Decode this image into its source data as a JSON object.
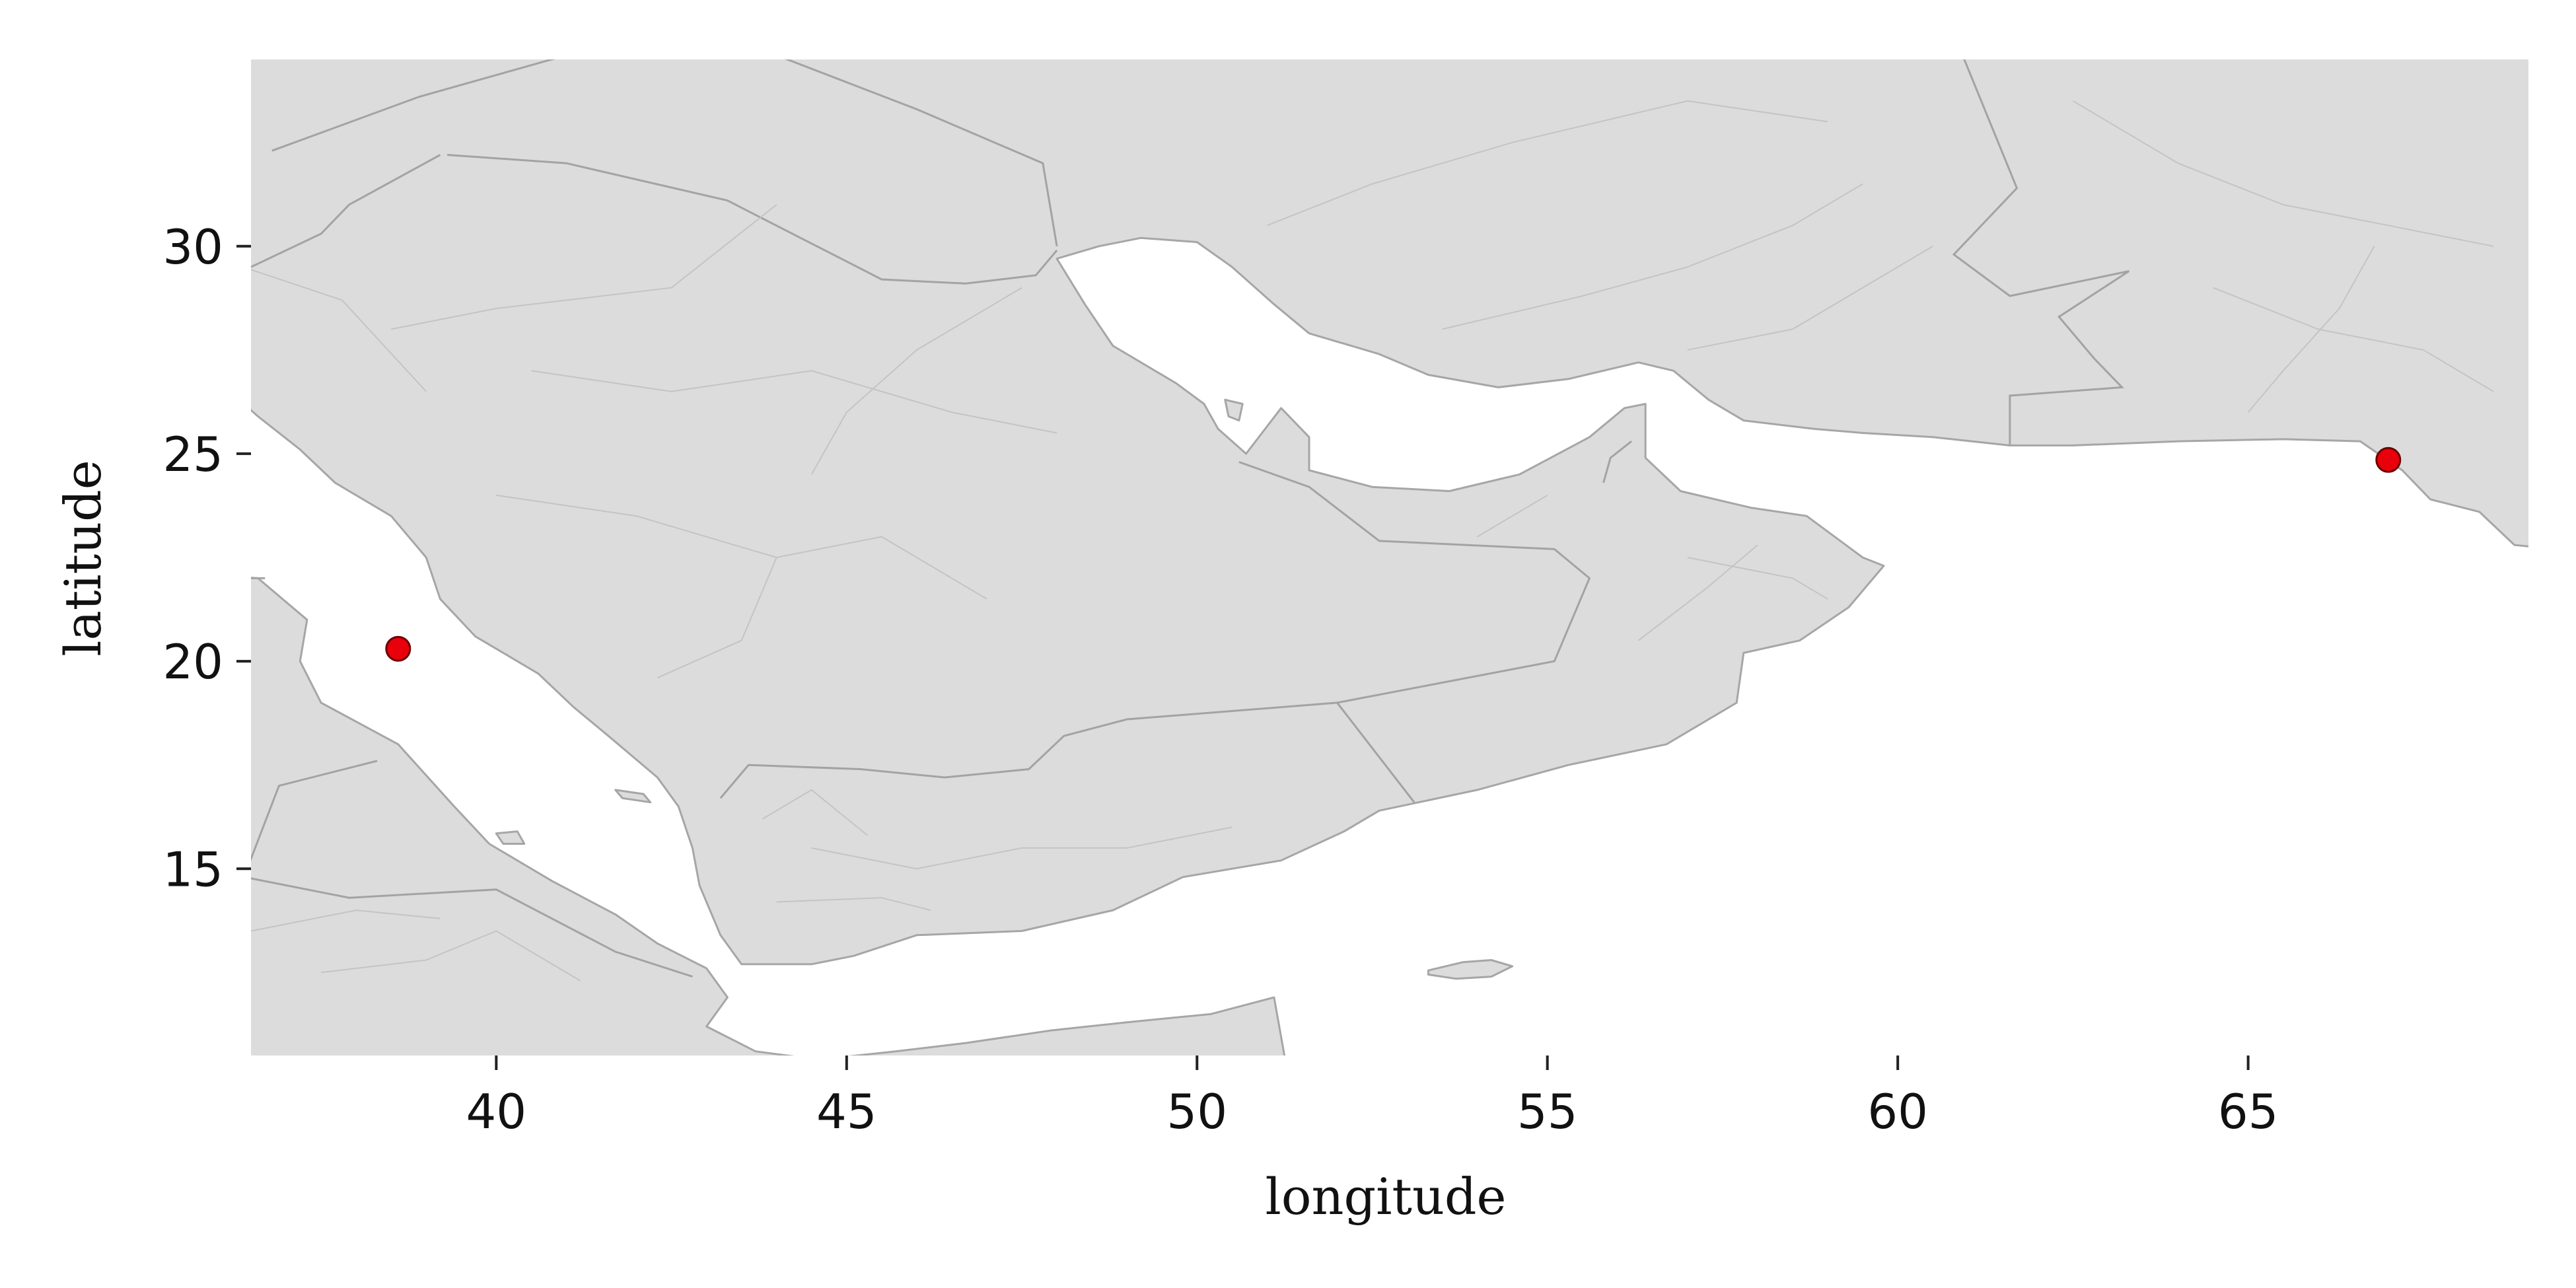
{
  "chart_data": {
    "type": "scatter",
    "subtype": "geographic-map",
    "xlabel": "longitude",
    "ylabel": "latitude",
    "xlim": [
      36.5,
      69
    ],
    "ylim": [
      10.5,
      34.5
    ],
    "xticks": [
      {
        "value": 40,
        "label": "40"
      },
      {
        "value": 45,
        "label": "45"
      },
      {
        "value": 50,
        "label": "50"
      },
      {
        "value": 55,
        "label": "55"
      },
      {
        "value": 60,
        "label": "60"
      },
      {
        "value": 65,
        "label": "65"
      }
    ],
    "yticks": [
      {
        "value": 15,
        "label": "15"
      },
      {
        "value": 20,
        "label": "20"
      },
      {
        "value": 25,
        "label": "25"
      },
      {
        "value": 30,
        "label": "30"
      }
    ],
    "points": [
      {
        "lon": 38.6,
        "lat": 20.3
      },
      {
        "lon": 67.0,
        "lat": 24.85
      }
    ],
    "grid": false,
    "basemap_land_color": "#dcdcdc",
    "basemap_border_color": "#a6a6a6",
    "marker_color": "#e8000b"
  }
}
